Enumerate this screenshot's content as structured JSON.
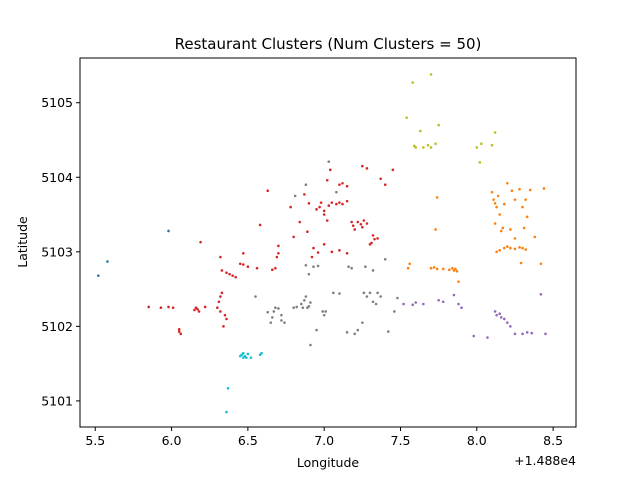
{
  "chart_data": {
    "type": "scatter",
    "title": "Restaurant Clusters (Num Clusters = 50)",
    "xlabel": "Longitude",
    "ylabel": "Latitude",
    "x_offset_label": "+1.488e4",
    "xlim": [
      5.4,
      8.65
    ],
    "ylim": [
      5100.65,
      5105.6
    ],
    "xticks": [
      5.5,
      6.0,
      6.5,
      7.0,
      7.5,
      8.0,
      8.5
    ],
    "xtick_labels": [
      "5.5",
      "6.0",
      "6.5",
      "7.0",
      "7.5",
      "8.0",
      "8.5"
    ],
    "yticks": [
      5101,
      5102,
      5103,
      5104,
      5105
    ],
    "ytick_labels": [
      "5101",
      "5102",
      "5103",
      "5104",
      "5105"
    ],
    "grid": false,
    "series": [
      {
        "color": "#1f77b4",
        "points": [
          [
            5.52,
            5102.68
          ],
          [
            5.58,
            5102.87
          ],
          [
            5.98,
            5103.28
          ]
        ]
      },
      {
        "color": "#17becf",
        "points": [
          [
            6.45,
            5101.6
          ],
          [
            6.46,
            5101.62
          ],
          [
            6.47,
            5101.64
          ],
          [
            6.48,
            5101.6
          ],
          [
            6.49,
            5101.58
          ],
          [
            6.5,
            5101.63
          ],
          [
            6.52,
            5101.58
          ],
          [
            6.58,
            5101.62
          ],
          [
            6.59,
            5101.64
          ],
          [
            6.47,
            5101.58
          ],
          [
            6.37,
            5101.17
          ],
          [
            6.36,
            5100.85
          ]
        ]
      },
      {
        "color": "#d62728",
        "points": [
          [
            5.85,
            5102.26
          ],
          [
            5.93,
            5102.25
          ],
          [
            5.98,
            5102.26
          ],
          [
            6.01,
            5102.25
          ],
          [
            6.05,
            5101.96
          ],
          [
            6.06,
            5101.9
          ],
          [
            6.05,
            5101.93
          ],
          [
            6.15,
            5102.22
          ],
          [
            6.16,
            5102.25
          ],
          [
            6.17,
            5102.23
          ],
          [
            6.18,
            5102.2
          ],
          [
            6.19,
            5103.13
          ],
          [
            6.22,
            5102.26
          ],
          [
            6.3,
            5102.25
          ],
          [
            6.31,
            5102.33
          ],
          [
            6.32,
            5102.4
          ],
          [
            6.33,
            5102.45
          ],
          [
            6.32,
            5102.2
          ],
          [
            6.34,
            5102.0
          ],
          [
            6.35,
            5102.15
          ],
          [
            6.36,
            5102.1
          ],
          [
            6.33,
            5102.75
          ],
          [
            6.36,
            5102.72
          ],
          [
            6.38,
            5102.7
          ],
          [
            6.4,
            5102.68
          ],
          [
            6.42,
            5102.66
          ],
          [
            6.45,
            5102.84
          ],
          [
            6.47,
            5102.83
          ],
          [
            6.5,
            5102.8
          ],
          [
            6.56,
            5102.78
          ],
          [
            6.32,
            5102.93
          ],
          [
            6.47,
            5102.98
          ],
          [
            6.58,
            5103.36
          ],
          [
            6.63,
            5103.82
          ],
          [
            6.66,
            5102.76
          ],
          [
            6.68,
            5102.78
          ],
          [
            6.69,
            5102.93
          ],
          [
            6.7,
            5103.08
          ],
          [
            6.7,
            5102.98
          ],
          [
            6.78,
            5103.6
          ],
          [
            6.8,
            5103.2
          ],
          [
            6.84,
            5103.4
          ],
          [
            6.87,
            5103.77
          ],
          [
            6.89,
            5103.27
          ],
          [
            6.9,
            5103.65
          ],
          [
            6.92,
            5102.93
          ],
          [
            6.93,
            5103.05
          ],
          [
            6.95,
            5103.57
          ],
          [
            6.97,
            5103.6
          ],
          [
            6.98,
            5103.66
          ],
          [
            7.0,
            5103.55
          ],
          [
            7.0,
            5103.5
          ],
          [
            7.02,
            5103.42
          ],
          [
            7.03,
            5103.62
          ],
          [
            7.05,
            5103.66
          ],
          [
            7.08,
            5103.64
          ],
          [
            7.1,
            5103.66
          ],
          [
            7.12,
            5103.64
          ],
          [
            7.15,
            5103.68
          ],
          [
            7.18,
            5103.4
          ],
          [
            7.19,
            5103.35
          ],
          [
            7.2,
            5103.3
          ],
          [
            7.22,
            5103.4
          ],
          [
            7.24,
            5103.37
          ],
          [
            7.25,
            5103.33
          ],
          [
            7.26,
            5103.42
          ],
          [
            7.28,
            5103.38
          ],
          [
            7.1,
            5103.9
          ],
          [
            7.12,
            5103.92
          ],
          [
            7.15,
            5103.88
          ],
          [
            7.25,
            5104.15
          ],
          [
            7.28,
            5104.12
          ],
          [
            7.32,
            5103.22
          ],
          [
            7.33,
            5103.17
          ],
          [
            7.35,
            5103.18
          ],
          [
            7.37,
            5103.98
          ],
          [
            7.4,
            5103.9
          ],
          [
            7.45,
            5104.1
          ],
          [
            7.0,
            5103.1
          ],
          [
            7.05,
            5103.0
          ],
          [
            7.1,
            5103.02
          ],
          [
            7.15,
            5102.98
          ],
          [
            6.96,
            5102.99
          ],
          [
            7.02,
            5103.96
          ],
          [
            7.04,
            5104.1
          ],
          [
            7.3,
            5103.1
          ],
          [
            7.31,
            5103.12
          ]
        ]
      },
      {
        "color": "#7f7f7f",
        "points": [
          [
            6.55,
            5102.4
          ],
          [
            6.63,
            5102.19
          ],
          [
            6.65,
            5102.05
          ],
          [
            6.66,
            5102.12
          ],
          [
            6.67,
            5102.2
          ],
          [
            6.68,
            5102.25
          ],
          [
            6.7,
            5102.24
          ],
          [
            6.72,
            5102.15
          ],
          [
            6.72,
            5102.08
          ],
          [
            6.74,
            5102.05
          ],
          [
            6.8,
            5102.25
          ],
          [
            6.82,
            5102.26
          ],
          [
            6.85,
            5102.3
          ],
          [
            6.87,
            5102.35
          ],
          [
            6.88,
            5102.4
          ],
          [
            6.89,
            5102.25
          ],
          [
            6.9,
            5102.27
          ],
          [
            6.91,
            5102.32
          ],
          [
            6.88,
            5102.82
          ],
          [
            6.93,
            5102.8
          ],
          [
            6.96,
            5102.81
          ],
          [
            6.99,
            5102.2
          ],
          [
            7.0,
            5102.15
          ],
          [
            7.01,
            5102.2
          ],
          [
            6.91,
            5101.75
          ],
          [
            6.95,
            5101.95
          ],
          [
            7.06,
            5102.45
          ],
          [
            7.1,
            5102.44
          ],
          [
            7.15,
            5101.92
          ],
          [
            7.2,
            5101.9
          ],
          [
            7.16,
            5102.8
          ],
          [
            7.18,
            5102.78
          ],
          [
            7.22,
            5101.95
          ],
          [
            7.25,
            5102.05
          ],
          [
            7.26,
            5102.45
          ],
          [
            7.28,
            5102.4
          ],
          [
            7.3,
            5102.45
          ],
          [
            7.32,
            5102.33
          ],
          [
            7.34,
            5102.3
          ],
          [
            7.35,
            5102.45
          ],
          [
            7.37,
            5102.4
          ],
          [
            7.4,
            5102.9
          ],
          [
            7.42,
            5101.93
          ],
          [
            7.46,
            5102.2
          ],
          [
            7.48,
            5102.38
          ],
          [
            7.27,
            5102.8
          ],
          [
            7.32,
            5102.75
          ],
          [
            6.81,
            5103.75
          ],
          [
            6.88,
            5103.9
          ],
          [
            7.03,
            5104.21
          ],
          [
            7.08,
            5103.8
          ],
          [
            6.9,
            5102.7
          ],
          [
            6.86,
            5102.25
          ]
        ]
      },
      {
        "color": "#bcbd22",
        "points": [
          [
            7.54,
            5104.8
          ],
          [
            7.58,
            5105.27
          ],
          [
            7.59,
            5104.42
          ],
          [
            7.6,
            5104.4
          ],
          [
            7.63,
            5104.62
          ],
          [
            7.65,
            5104.4
          ],
          [
            7.68,
            5104.43
          ],
          [
            7.7,
            5104.4
          ],
          [
            7.7,
            5105.38
          ],
          [
            7.73,
            5104.45
          ],
          [
            7.75,
            5104.7
          ],
          [
            8.0,
            5104.4
          ],
          [
            8.02,
            5104.2
          ],
          [
            8.03,
            5104.45
          ],
          [
            8.1,
            5104.43
          ],
          [
            8.12,
            5104.6
          ]
        ]
      },
      {
        "color": "#ff7f0e",
        "points": [
          [
            7.55,
            5102.78
          ],
          [
            7.56,
            5102.84
          ],
          [
            7.7,
            5102.78
          ],
          [
            7.72,
            5102.79
          ],
          [
            7.74,
            5102.77
          ],
          [
            7.73,
            5103.3
          ],
          [
            7.74,
            5103.73
          ],
          [
            7.78,
            5102.77
          ],
          [
            7.82,
            5102.76
          ],
          [
            7.84,
            5102.78
          ],
          [
            7.85,
            5102.75
          ],
          [
            7.86,
            5102.77
          ],
          [
            7.87,
            5102.74
          ],
          [
            7.88,
            5102.6
          ],
          [
            8.1,
            5103.8
          ],
          [
            8.11,
            5103.7
          ],
          [
            8.12,
            5103.65
          ],
          [
            8.13,
            5103.6
          ],
          [
            8.14,
            5103.75
          ],
          [
            8.15,
            5103.5
          ],
          [
            8.16,
            5103.28
          ],
          [
            8.17,
            5103.32
          ],
          [
            8.12,
            5103.38
          ],
          [
            8.13,
            5103.0
          ],
          [
            8.15,
            5103.02
          ],
          [
            8.18,
            5103.05
          ],
          [
            8.2,
            5103.07
          ],
          [
            8.22,
            5103.05
          ],
          [
            8.25,
            5103.04
          ],
          [
            8.28,
            5103.06
          ],
          [
            8.3,
            5103.05
          ],
          [
            8.32,
            5103.03
          ],
          [
            8.2,
            5103.92
          ],
          [
            8.23,
            5103.82
          ],
          [
            8.25,
            5103.7
          ],
          [
            8.28,
            5103.84
          ],
          [
            8.3,
            5103.6
          ],
          [
            8.32,
            5103.7
          ],
          [
            8.35,
            5103.83
          ],
          [
            8.22,
            5103.3
          ],
          [
            8.25,
            5103.18
          ],
          [
            8.29,
            5102.85
          ],
          [
            8.33,
            5103.47
          ],
          [
            8.38,
            5103.2
          ],
          [
            8.42,
            5102.84
          ],
          [
            8.44,
            5103.85
          ],
          [
            8.18,
            5103.64
          ],
          [
            8.31,
            5103.32
          ]
        ]
      },
      {
        "color": "#9467bd",
        "points": [
          [
            7.52,
            5102.3
          ],
          [
            7.58,
            5102.29
          ],
          [
            7.6,
            5102.32
          ],
          [
            7.65,
            5102.3
          ],
          [
            7.75,
            5102.35
          ],
          [
            7.78,
            5102.33
          ],
          [
            7.85,
            5102.42
          ],
          [
            7.88,
            5102.3
          ],
          [
            7.9,
            5102.25
          ],
          [
            7.98,
            5101.87
          ],
          [
            8.07,
            5101.85
          ],
          [
            8.12,
            5102.2
          ],
          [
            8.13,
            5102.15
          ],
          [
            8.15,
            5102.17
          ],
          [
            8.16,
            5102.12
          ],
          [
            8.18,
            5102.1
          ],
          [
            8.2,
            5102.05
          ],
          [
            8.22,
            5102.0
          ],
          [
            8.25,
            5101.9
          ],
          [
            8.3,
            5101.9
          ],
          [
            8.33,
            5101.92
          ],
          [
            8.36,
            5101.91
          ],
          [
            8.42,
            5102.43
          ],
          [
            8.45,
            5101.9
          ]
        ]
      }
    ]
  }
}
